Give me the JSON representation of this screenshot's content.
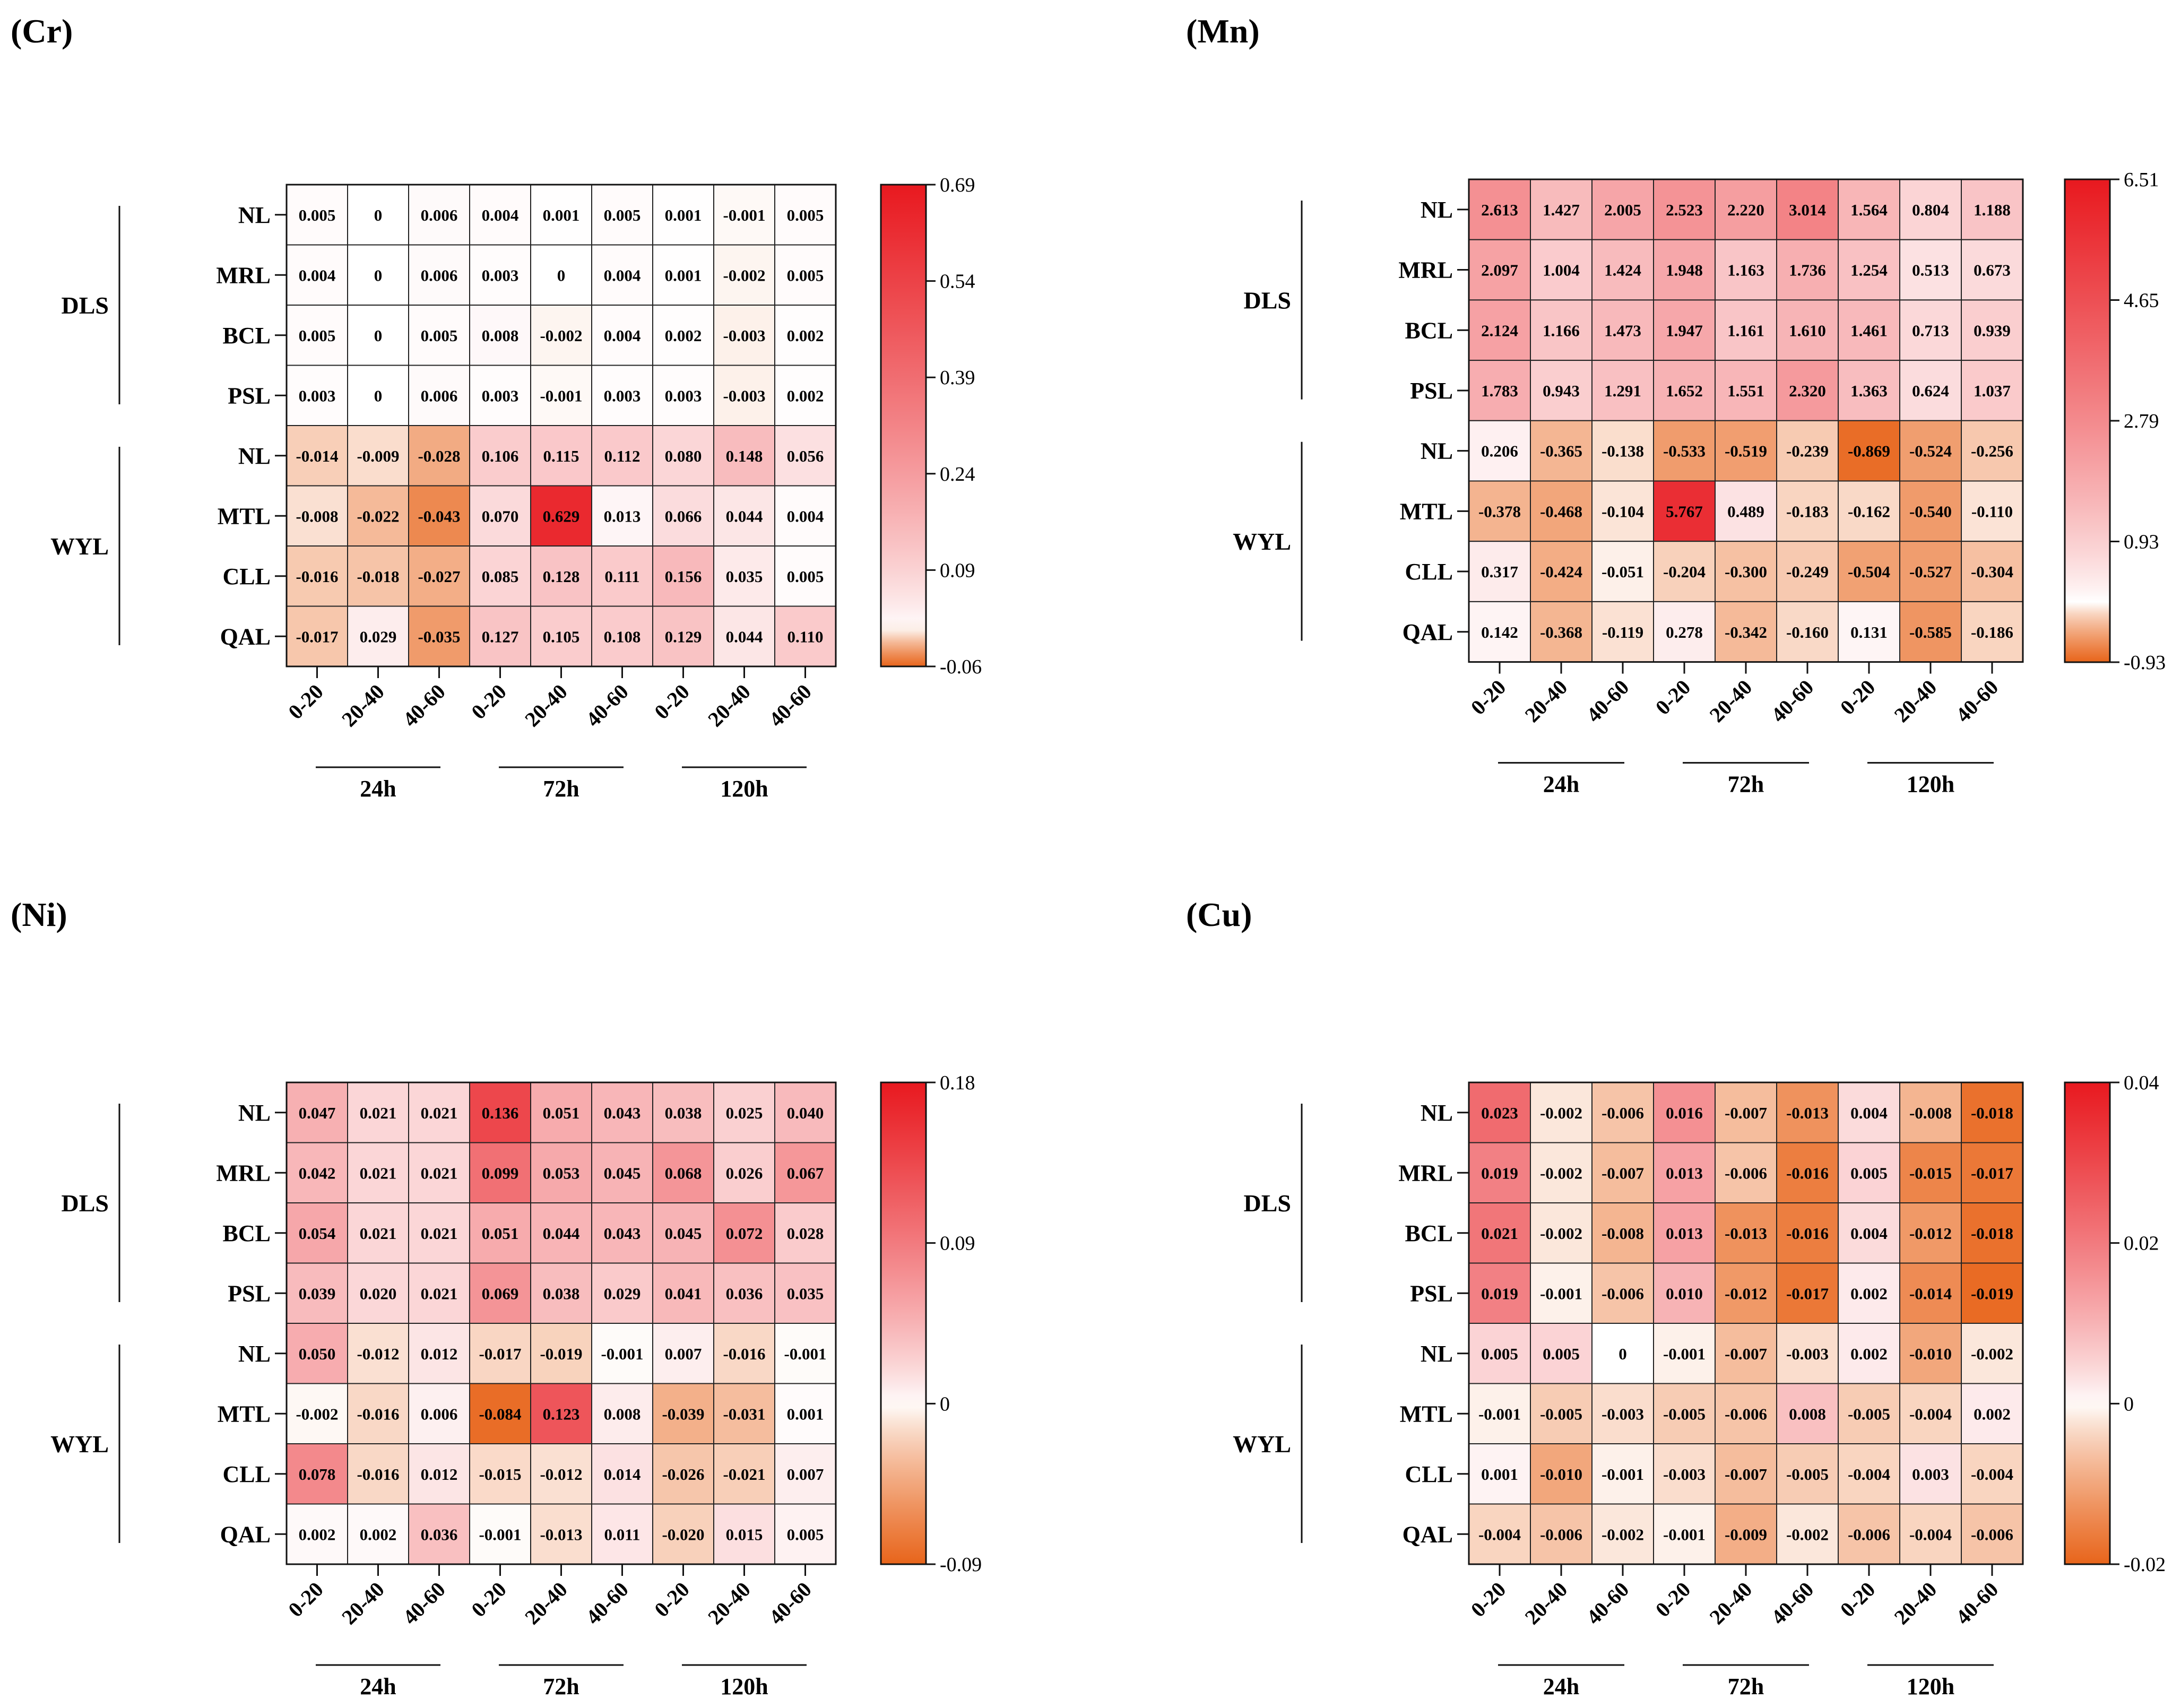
{
  "figure": {
    "groups": [
      "DLS",
      "WYL"
    ],
    "row_labels": [
      "NL",
      "MRL",
      "BCL",
      "PSL",
      "NL",
      "MTL",
      "CLL",
      "QAL"
    ],
    "col_labels": [
      "0-20",
      "20-40",
      "40-60",
      "0-20",
      "20-40",
      "40-60",
      "0-20",
      "20-40",
      "40-60"
    ],
    "time_labels": [
      "24h",
      "72h",
      "120h"
    ],
    "colors": {
      "low": "#e8651b",
      "mid": "#ffffff",
      "high": "#e8191f"
    }
  },
  "chart_data": [
    {
      "type": "heatmap",
      "title": "(Cr)",
      "colorbar_ticks": [
        "0.69",
        "0.54",
        "0.39",
        "0.24",
        "0.09",
        "-0.06"
      ],
      "vmin": -0.06,
      "vmid": 0,
      "vmax": 0.69,
      "values": [
        [
          "0.005",
          "0",
          "0.006",
          "0.004",
          "0.001",
          "0.005",
          "0.001",
          "-0.001",
          "0.005"
        ],
        [
          "0.004",
          "0",
          "0.006",
          "0.003",
          "0",
          "0.004",
          "0.001",
          "-0.002",
          "0.005"
        ],
        [
          "0.005",
          "0",
          "0.005",
          "0.008",
          "-0.002",
          "0.004",
          "0.002",
          "-0.003",
          "0.002"
        ],
        [
          "0.003",
          "0",
          "0.006",
          "0.003",
          "-0.001",
          "0.003",
          "0.003",
          "-0.003",
          "0.002"
        ],
        [
          "-0.014",
          "-0.009",
          "-0.028",
          "0.106",
          "0.115",
          "0.112",
          "0.080",
          "0.148",
          "0.056"
        ],
        [
          "-0.008",
          "-0.022",
          "-0.043",
          "0.070",
          "0.629",
          "0.013",
          "0.066",
          "0.044",
          "0.004"
        ],
        [
          "-0.016",
          "-0.018",
          "-0.027",
          "0.085",
          "0.128",
          "0.111",
          "0.156",
          "0.035",
          "0.005"
        ],
        [
          "-0.017",
          "0.029",
          "-0.035",
          "0.127",
          "0.105",
          "0.108",
          "0.129",
          "0.044",
          "0.110"
        ]
      ]
    },
    {
      "type": "heatmap",
      "title": "(Mn)",
      "colorbar_ticks": [
        "6.51",
        "4.65",
        "2.79",
        "0.93",
        "-0.93"
      ],
      "vmin": -0.93,
      "vmid": 0,
      "vmax": 6.51,
      "values": [
        [
          "2.613",
          "1.427",
          "2.005",
          "2.523",
          "2.220",
          "3.014",
          "1.564",
          "0.804",
          "1.188"
        ],
        [
          "2.097",
          "1.004",
          "1.424",
          "1.948",
          "1.163",
          "1.736",
          "1.254",
          "0.513",
          "0.673"
        ],
        [
          "2.124",
          "1.166",
          "1.473",
          "1.947",
          "1.161",
          "1.610",
          "1.461",
          "0.713",
          "0.939"
        ],
        [
          "1.783",
          "0.943",
          "1.291",
          "1.652",
          "1.551",
          "2.320",
          "1.363",
          "0.624",
          "1.037"
        ],
        [
          "0.206",
          "-0.365",
          "-0.138",
          "-0.533",
          "-0.519",
          "-0.239",
          "-0.869",
          "-0.524",
          "-0.256"
        ],
        [
          "-0.378",
          "-0.468",
          "-0.104",
          "5.767",
          "0.489",
          "-0.183",
          "-0.162",
          "-0.540",
          "-0.110"
        ],
        [
          "0.317",
          "-0.424",
          "-0.051",
          "-0.204",
          "-0.300",
          "-0.249",
          "-0.504",
          "-0.527",
          "-0.304"
        ],
        [
          "0.142",
          "-0.368",
          "-0.119",
          "0.278",
          "-0.342",
          "-0.160",
          "0.131",
          "-0.585",
          "-0.186"
        ]
      ]
    },
    {
      "type": "heatmap",
      "title": "(Ni)",
      "colorbar_ticks": [
        "0.18",
        "0.09",
        "0",
        "-0.09"
      ],
      "vmin": -0.09,
      "vmid": 0,
      "vmax": 0.18,
      "values": [
        [
          "0.047",
          "0.021",
          "0.021",
          "0.136",
          "0.051",
          "0.043",
          "0.038",
          "0.025",
          "0.040"
        ],
        [
          "0.042",
          "0.021",
          "0.021",
          "0.099",
          "0.053",
          "0.045",
          "0.068",
          "0.026",
          "0.067"
        ],
        [
          "0.054",
          "0.021",
          "0.021",
          "0.051",
          "0.044",
          "0.043",
          "0.045",
          "0.072",
          "0.028"
        ],
        [
          "0.039",
          "0.020",
          "0.021",
          "0.069",
          "0.038",
          "0.029",
          "0.041",
          "0.036",
          "0.035"
        ],
        [
          "0.050",
          "-0.012",
          "0.012",
          "-0.017",
          "-0.019",
          "-0.001",
          "0.007",
          "-0.016",
          "-0.001"
        ],
        [
          "-0.002",
          "-0.016",
          "0.006",
          "-0.084",
          "0.123",
          "0.008",
          "-0.039",
          "-0.031",
          "0.001"
        ],
        [
          "0.078",
          "-0.016",
          "0.012",
          "-0.015",
          "-0.012",
          "0.014",
          "-0.026",
          "-0.021",
          "0.007"
        ],
        [
          "0.002",
          "0.002",
          "0.036",
          "-0.001",
          "-0.013",
          "0.011",
          "-0.020",
          "0.015",
          "0.005"
        ]
      ]
    },
    {
      "type": "heatmap",
      "title": "(Cu)",
      "colorbar_ticks": [
        "0.04",
        "0.02",
        "0",
        "-0.02"
      ],
      "vmin": -0.02,
      "vmid": 0,
      "vmax": 0.04,
      "values": [
        [
          "0.023",
          "-0.002",
          "-0.006",
          "0.016",
          "-0.007",
          "-0.013",
          "0.004",
          "-0.008",
          "-0.018"
        ],
        [
          "0.019",
          "-0.002",
          "-0.007",
          "0.013",
          "-0.006",
          "-0.016",
          "0.005",
          "-0.015",
          "-0.017"
        ],
        [
          "0.021",
          "-0.002",
          "-0.008",
          "0.013",
          "-0.013",
          "-0.016",
          "0.004",
          "-0.012",
          "-0.018"
        ],
        [
          "0.019",
          "-0.001",
          "-0.006",
          "0.010",
          "-0.012",
          "-0.017",
          "0.002",
          "-0.014",
          "-0.019"
        ],
        [
          "0.005",
          "0.005",
          "0",
          "-0.001",
          "-0.007",
          "-0.003",
          "0.002",
          "-0.010",
          "-0.002"
        ],
        [
          "-0.001",
          "-0.005",
          "-0.003",
          "-0.005",
          "-0.006",
          "0.008",
          "-0.005",
          "-0.004",
          "0.002"
        ],
        [
          "0.001",
          "-0.010",
          "-0.001",
          "-0.003",
          "-0.007",
          "-0.005",
          "-0.004",
          "0.003",
          "-0.004"
        ],
        [
          "-0.004",
          "-0.006",
          "-0.002",
          "-0.001",
          "-0.009",
          "-0.002",
          "-0.006",
          "-0.004",
          "-0.006"
        ]
      ]
    }
  ]
}
